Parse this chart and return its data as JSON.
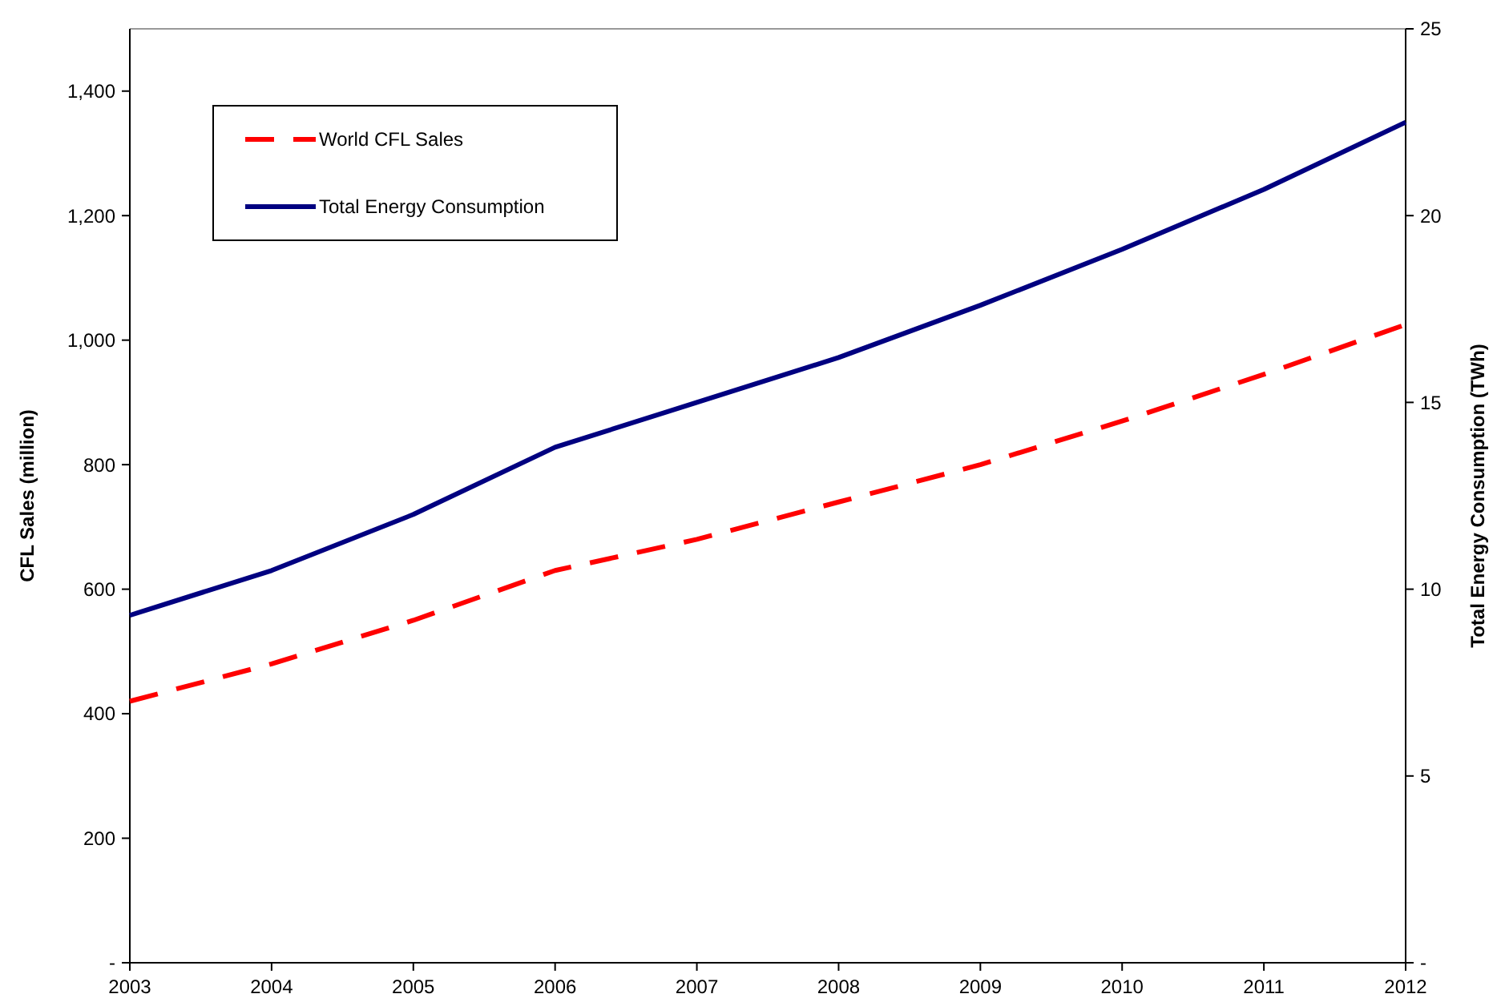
{
  "chart_data": {
    "type": "line",
    "xlabel": null,
    "ylabel": "CFL Sales (million)",
    "y2label": "Total Energy Consumption (TWh)",
    "x": [
      2003,
      2004,
      2005,
      2006,
      2007,
      2008,
      2009,
      2010,
      2011,
      2012
    ],
    "xlim": [
      2003,
      2012
    ],
    "xticks": [
      2003,
      2004,
      2005,
      2006,
      2007,
      2008,
      2009,
      2010,
      2011,
      2012
    ],
    "ylim": [
      0,
      1500
    ],
    "yticks": [
      {
        "value": 0,
        "label": "-"
      },
      {
        "value": 200,
        "label": "200"
      },
      {
        "value": 400,
        "label": "400"
      },
      {
        "value": 600,
        "label": "600"
      },
      {
        "value": 800,
        "label": "800"
      },
      {
        "value": 1000,
        "label": "1,000"
      },
      {
        "value": 1200,
        "label": "1,200"
      },
      {
        "value": 1400,
        "label": "1,400"
      }
    ],
    "y2lim": [
      0,
      25
    ],
    "y2ticks": [
      {
        "value": 0,
        "label": "-"
      },
      5,
      10,
      15,
      20,
      25
    ],
    "series": [
      {
        "name": "World CFL Sales",
        "color": "#ff0000",
        "line_style": "dashed",
        "values": [
          420,
          480,
          550,
          630,
          680,
          740,
          800,
          870,
          945,
          1025
        ]
      },
      {
        "name": "Total Energy Consumption",
        "color": "#000080",
        "line_style": "solid",
        "axis": "y2",
        "values": [
          9.3,
          10.5,
          12.0,
          13.8,
          15.0,
          16.2,
          17.6,
          19.1,
          20.7,
          22.5
        ]
      }
    ],
    "legend": "top left",
    "grid": false
  }
}
